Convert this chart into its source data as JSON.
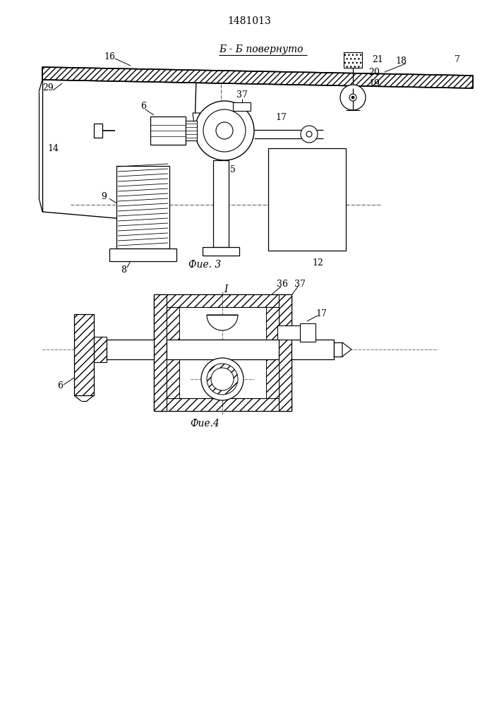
{
  "title": "1481013",
  "fig3_label": "Фие. 3",
  "fig4_label": "Фие.4",
  "section_label": "Б - Б повернуто",
  "detail_label": "I",
  "bg_color": "#ffffff",
  "line_color": "#000000",
  "fig_width": 7.07,
  "fig_height": 10.0
}
